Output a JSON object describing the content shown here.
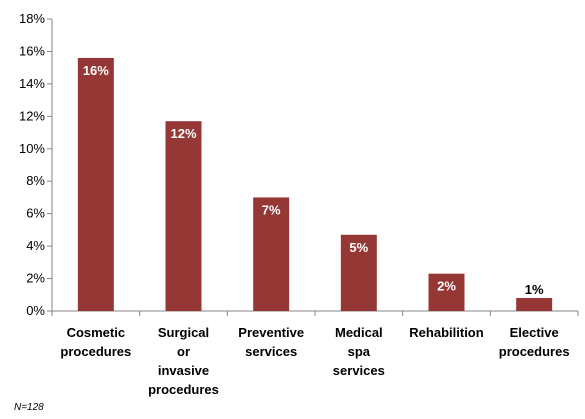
{
  "chart_data": {
    "type": "bar",
    "categories": [
      [
        "Cosmetic",
        "procedures"
      ],
      [
        "Surgical",
        "or",
        "invasive",
        "procedures"
      ],
      [
        "Preventive",
        "services"
      ],
      [
        "Medical",
        "spa",
        "services"
      ],
      [
        "Rehabilition"
      ],
      [
        "Elective",
        "procedures"
      ]
    ],
    "values": [
      15.6,
      11.7,
      7.0,
      4.7,
      2.3,
      0.8
    ],
    "data_labels": [
      "16%",
      "12%",
      "7%",
      "5%",
      "2%",
      "1%"
    ],
    "yticks": [
      "0%",
      "2%",
      "4%",
      "6%",
      "8%",
      "10%",
      "12%",
      "14%",
      "16%",
      "18%"
    ],
    "ylim": [
      0,
      18
    ],
    "ytick_step": 2,
    "grid": false,
    "bar_color": "#953735",
    "label_inside_color": "#ffffff",
    "label_outside_color": "#000000"
  },
  "footnote": "N=128"
}
